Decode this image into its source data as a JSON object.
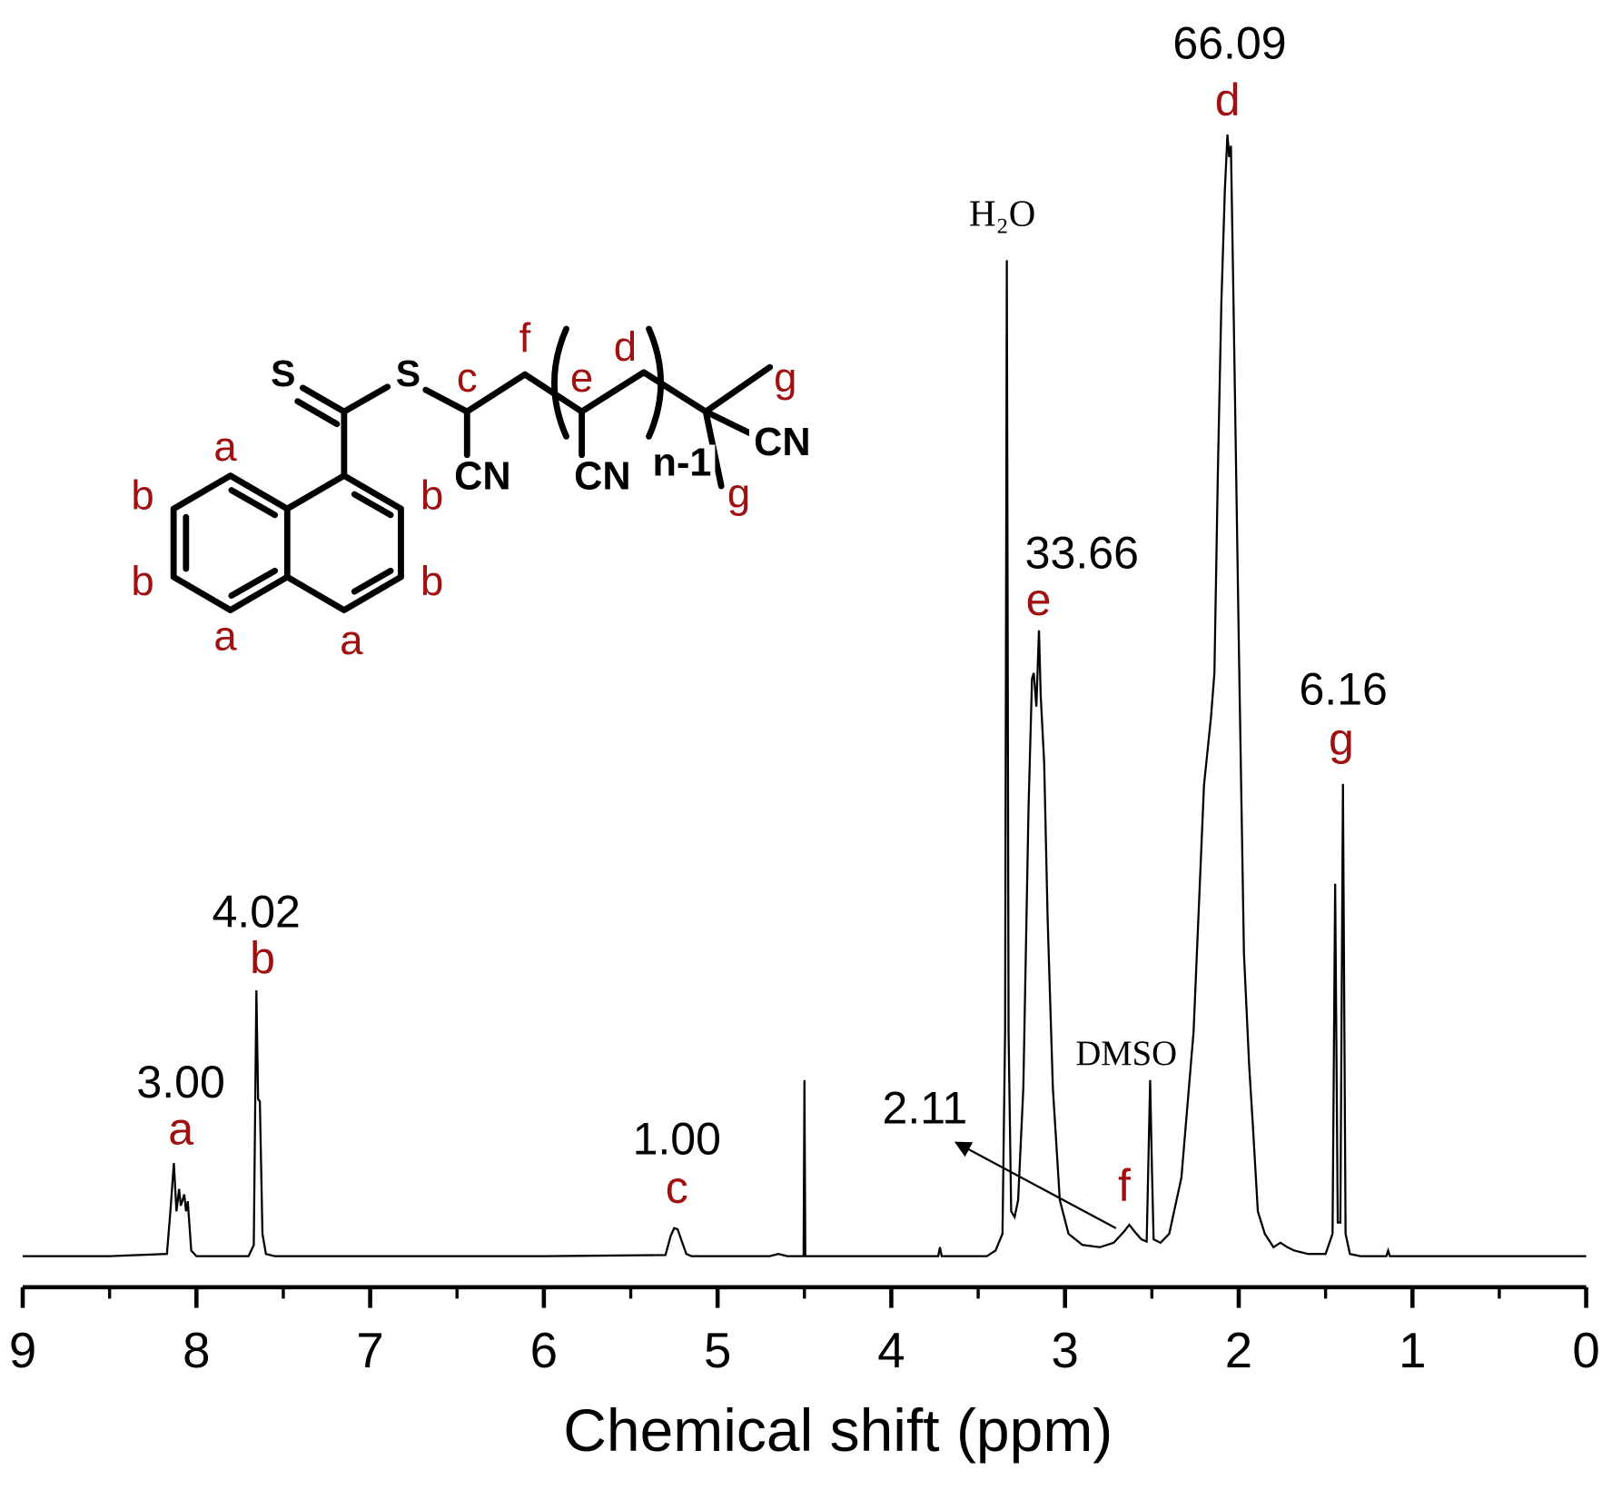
{
  "chart_data": {
    "type": "line",
    "xlabel": "Chemical shift (ppm)",
    "xlim": [
      9,
      0
    ],
    "ylim": [
      0,
      100
    ],
    "xticks": [
      9,
      8,
      7,
      6,
      5,
      4,
      3,
      2,
      1,
      0
    ],
    "xminor_ticks": [
      8.5,
      7.5,
      6.5,
      5.5,
      4.5,
      3.5,
      2.5,
      1.5,
      0.5
    ],
    "color": "#000000",
    "x": [
      9.0,
      8.5,
      8.17,
      8.15,
      8.13,
      8.115,
      8.1,
      8.09,
      8.07,
      8.06,
      8.05,
      8.03,
      8.0,
      7.7,
      7.67,
      7.655,
      7.645,
      7.635,
      7.62,
      7.6,
      7.55,
      6.0,
      5.3,
      5.27,
      5.25,
      5.23,
      5.21,
      5.18,
      5.15,
      4.7,
      4.65,
      4.6,
      4.505,
      4.5,
      4.495,
      4.1,
      3.73,
      3.72,
      3.71,
      3.45,
      3.4,
      3.36,
      3.345,
      3.335,
      3.325,
      3.31,
      3.29,
      3.27,
      3.24,
      3.21,
      3.19,
      3.18,
      3.165,
      3.15,
      3.14,
      3.12,
      3.1,
      3.07,
      3.03,
      2.98,
      2.9,
      2.8,
      2.72,
      2.66,
      2.63,
      2.6,
      2.56,
      2.53,
      2.51,
      2.5,
      2.49,
      2.45,
      2.4,
      2.33,
      2.26,
      2.2,
      2.16,
      2.14,
      2.12,
      2.1,
      2.08,
      2.065,
      2.055,
      2.045,
      2.03,
      2.0,
      1.97,
      1.94,
      1.92,
      1.89,
      1.85,
      1.8,
      1.76,
      1.72,
      1.68,
      1.6,
      1.5,
      1.46,
      1.445,
      1.43,
      1.415,
      1.4,
      1.385,
      1.36,
      1.3,
      1.15,
      1.14,
      1.13,
      0.0
    ],
    "values": [
      0,
      0,
      0.2,
      4,
      8.3,
      4,
      6.0,
      4.5,
      5.5,
      4,
      4.9,
      0.5,
      0,
      0,
      1,
      23.7,
      14,
      13.8,
      2,
      0.2,
      0,
      0,
      0.1,
      1.8,
      2.5,
      2.4,
      1.5,
      0.2,
      0,
      0,
      0.2,
      0,
      0,
      15.7,
      0,
      0,
      0,
      0.8,
      0,
      0,
      0.5,
      2,
      20,
      88.8,
      20,
      4,
      3.5,
      5,
      15,
      40,
      51.5,
      52,
      49,
      55.8,
      50,
      44,
      30,
      15,
      5,
      2,
      1,
      0.8,
      1.2,
      2.2,
      2.8,
      2.2,
      1.5,
      1.3,
      15.7,
      8,
      1.5,
      1.2,
      2,
      7,
      20,
      42,
      48,
      52,
      70,
      85,
      95,
      100,
      98,
      99,
      85,
      55,
      27,
      17,
      12,
      4,
      2,
      0.8,
      1.2,
      0.8,
      0.5,
      0.2,
      0.2,
      2,
      33.2,
      3,
      3,
      42.1,
      2,
      0.2,
      0,
      0,
      0.5,
      0,
      0
    ],
    "peak_labels": [
      "a",
      "b",
      "c",
      "f",
      "e",
      "d",
      "g"
    ],
    "integrals": [
      "3.00",
      "4.02",
      "1.00",
      "2.11",
      "33.66",
      "66.09",
      "6.16"
    ],
    "solvent_labels": [
      "H₂O",
      "DMSO"
    ],
    "structure": {
      "atoms": [
        "S",
        "S",
        "CN",
        "CN",
        "n-1",
        "CN"
      ],
      "labels": [
        "c",
        "f",
        "e",
        "d",
        "g",
        "g",
        "a",
        "b",
        "b",
        "a",
        "a",
        "b",
        "b"
      ]
    }
  }
}
